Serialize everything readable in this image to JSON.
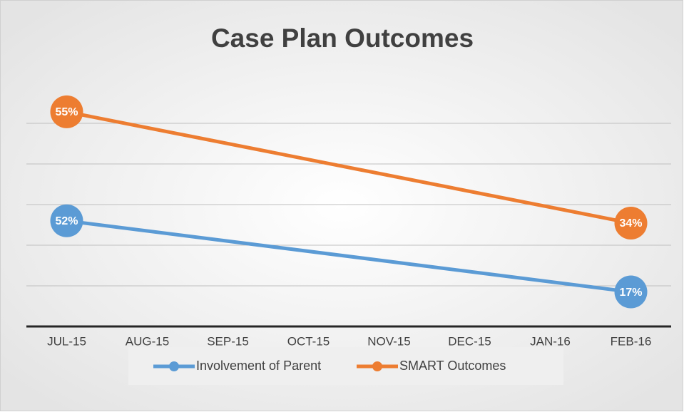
{
  "chart_data": {
    "type": "line",
    "title": "Case Plan Outcomes",
    "categories": [
      "JUL-15",
      "AUG-15",
      "SEP-15",
      "OCT-15",
      "NOV-15",
      "DEC-15",
      "JAN-16",
      "FEB-16"
    ],
    "series": [
      {
        "name": "Involvement of Parent",
        "color": "#5b9bd5",
        "values": [
          52,
          null,
          null,
          null,
          null,
          null,
          null,
          17
        ],
        "value_labels": [
          "52%",
          null,
          null,
          null,
          null,
          null,
          null,
          "17%"
        ]
      },
      {
        "name": "SMART Outcomes",
        "color": "#ed7d31",
        "axis": "y2",
        "values": [
          55,
          null,
          null,
          null,
          null,
          null,
          null,
          34
        ],
        "value_labels": [
          "55%",
          null,
          null,
          null,
          null,
          null,
          null,
          "34%"
        ]
      }
    ],
    "ylim": [
      0,
      120
    ],
    "yticks": [
      0,
      20,
      40,
      60,
      80,
      100
    ],
    "y2lim": [
      14.5,
      60.5
    ],
    "grid": true,
    "connect_gaps": true,
    "legend": "bottom"
  }
}
